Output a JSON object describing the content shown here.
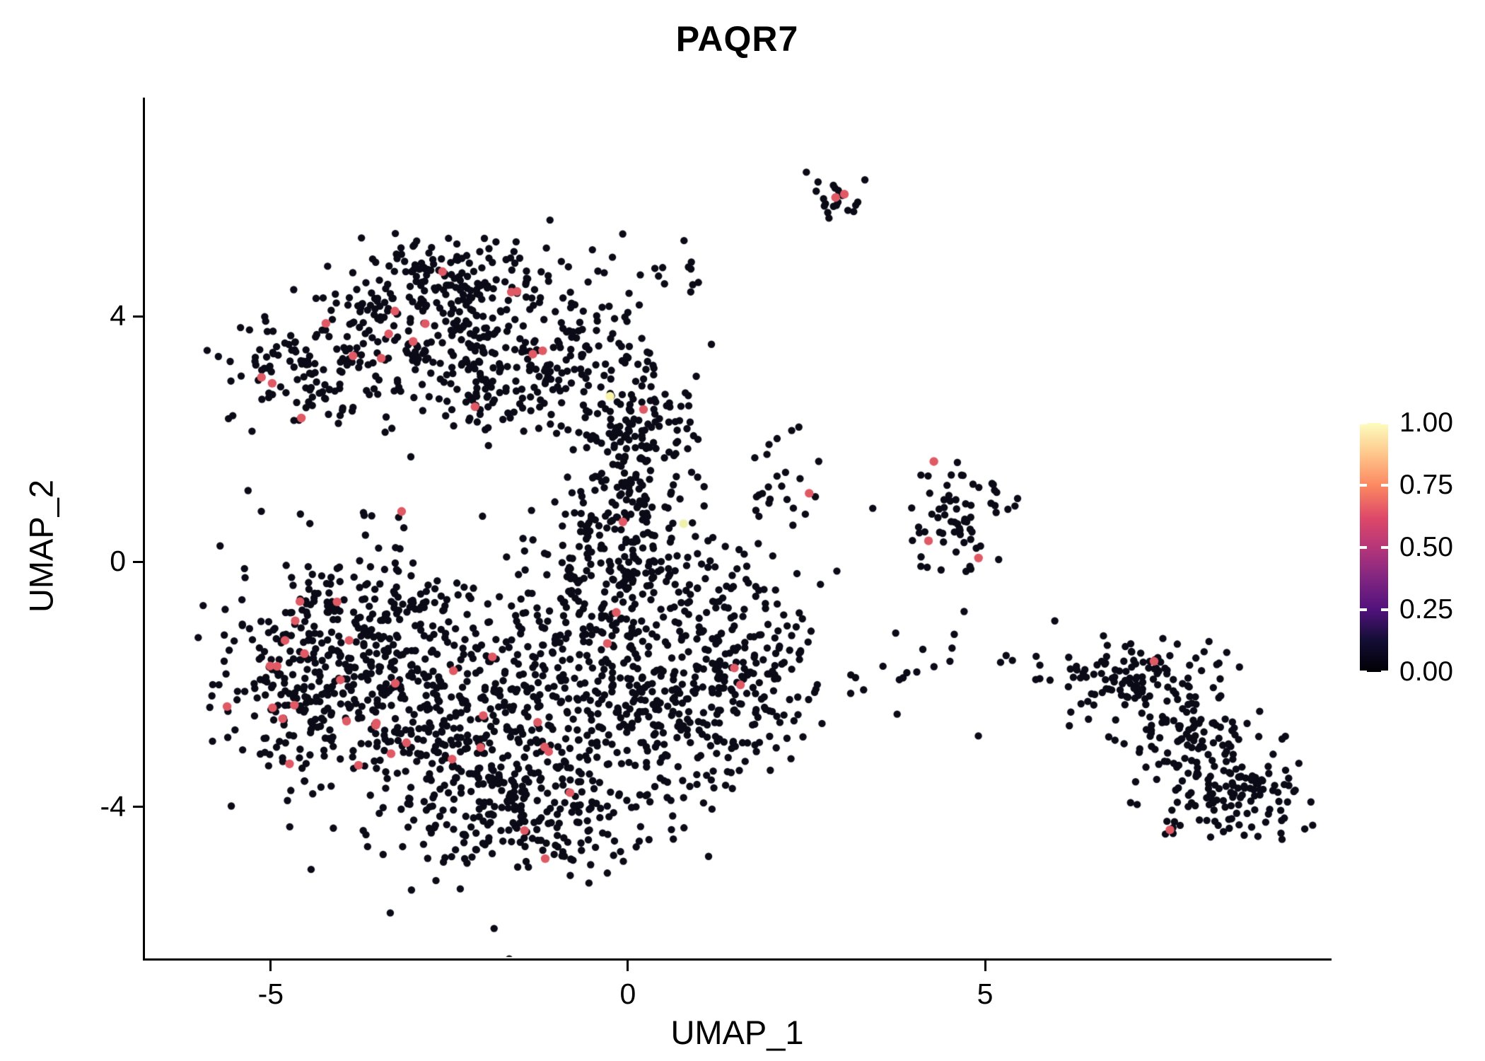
{
  "chart_data": {
    "type": "scatter",
    "title": "PAQR7",
    "xlabel": "UMAP_1",
    "ylabel": "UMAP_2",
    "xlim": [
      -6.76,
      9.82
    ],
    "ylim": [
      -6.47,
      7.57
    ],
    "grid": false,
    "legend_position": "right",
    "x_ticks": [
      {
        "value": -5,
        "label": "-5"
      },
      {
        "value": 0,
        "label": "0"
      },
      {
        "value": 5,
        "label": "5"
      }
    ],
    "y_ticks": [
      {
        "value": 4,
        "label": "4"
      },
      {
        "value": 0,
        "label": "0"
      },
      {
        "value": -4,
        "label": "-4"
      }
    ],
    "colorbar": {
      "colormap_name": "magma",
      "stops": [
        {
          "v": 0.0,
          "c": "#000004"
        },
        {
          "v": 0.13,
          "c": "#140E36"
        },
        {
          "v": 0.25,
          "c": "#51127C"
        },
        {
          "v": 0.38,
          "c": "#822681"
        },
        {
          "v": 0.5,
          "c": "#B63679"
        },
        {
          "v": 0.62,
          "c": "#DE4968"
        },
        {
          "v": 0.75,
          "c": "#FC8961"
        },
        {
          "v": 0.88,
          "c": "#FEC98D"
        },
        {
          "v": 1.0,
          "c": "#FCFDBF"
        }
      ],
      "labels": [
        {
          "value": 1.0,
          "text": "1.00"
        },
        {
          "value": 0.75,
          "text": "0.75"
        },
        {
          "value": 0.5,
          "text": "0.50"
        },
        {
          "value": 0.25,
          "text": "0.25"
        },
        {
          "value": 0.0,
          "text": "0.00"
        }
      ]
    },
    "points": {
      "base_color": "#0B0B17",
      "highlight_color": "#E05A65",
      "base_radius_px": 5.2,
      "highlight_radius_px": 6.2,
      "seed": 1337,
      "clusters": [
        {
          "name": "topleft-core",
          "cx": -2.7,
          "cy": 4.0,
          "sx": 0.85,
          "sy": 0.55,
          "n": 220,
          "highlights": 8
        },
        {
          "name": "topleft-north",
          "cx": -2.3,
          "cy": 4.7,
          "sx": 0.5,
          "sy": 0.3,
          "n": 70,
          "highlights": 1
        },
        {
          "name": "topleft-west",
          "cx": -4.35,
          "cy": 3.05,
          "sx": 0.65,
          "sy": 0.45,
          "n": 140,
          "highlights": 4
        },
        {
          "name": "topleft-south",
          "cx": -1.75,
          "cy": 2.9,
          "sx": 0.6,
          "sy": 0.5,
          "n": 120,
          "highlights": 2
        },
        {
          "name": "topleft-east-arm",
          "cx": -0.75,
          "cy": 3.5,
          "sx": 0.5,
          "sy": 0.65,
          "n": 80,
          "highlights": 1
        },
        {
          "name": "central-column-upper",
          "cx": 0.1,
          "cy": 2.0,
          "sx": 0.45,
          "sy": 0.75,
          "n": 170,
          "highlights": 1
        },
        {
          "name": "central-column-lower",
          "cx": -0.15,
          "cy": 0.55,
          "sx": 0.5,
          "sy": 0.5,
          "n": 90,
          "highlights": 1
        },
        {
          "name": "main-west",
          "cx": -3.6,
          "cy": -1.5,
          "sx": 0.95,
          "sy": 0.95,
          "n": 400,
          "highlights": 16
        },
        {
          "name": "main-farwest",
          "cx": -4.75,
          "cy": -2.1,
          "sx": 0.5,
          "sy": 0.75,
          "n": 120,
          "highlights": 6
        },
        {
          "name": "main-south",
          "cx": -2.2,
          "cy": -3.1,
          "sx": 0.95,
          "sy": 0.85,
          "n": 320,
          "highlights": 8
        },
        {
          "name": "main-center",
          "cx": -0.8,
          "cy": -1.6,
          "sx": 0.9,
          "sy": 0.95,
          "n": 270,
          "highlights": 2
        },
        {
          "name": "main-southeast",
          "cx": 0.8,
          "cy": -2.3,
          "sx": 0.85,
          "sy": 0.8,
          "n": 230,
          "highlights": 2
        },
        {
          "name": "main-bottom",
          "cx": -1.2,
          "cy": -4.2,
          "sx": 0.8,
          "sy": 0.45,
          "n": 150,
          "highlights": 2
        },
        {
          "name": "main-north",
          "cx": 0.3,
          "cy": -0.3,
          "sx": 0.65,
          "sy": 0.5,
          "n": 100,
          "highlights": 1
        },
        {
          "name": "main-east-lobe",
          "cx": 1.8,
          "cy": -1.6,
          "sx": 0.55,
          "sy": 0.8,
          "n": 120,
          "highlights": 0
        },
        {
          "name": "top-small",
          "cx": 2.85,
          "cy": 5.9,
          "sx": 0.2,
          "sy": 0.25,
          "n": 22,
          "highlights": 2
        },
        {
          "name": "bridge-upper",
          "cx": 0.5,
          "cy": 4.6,
          "sx": 0.35,
          "sy": 0.35,
          "n": 14,
          "highlights": 0
        },
        {
          "name": "mid-small",
          "cx": 2.15,
          "cy": 1.3,
          "sx": 0.3,
          "sy": 0.4,
          "n": 26,
          "highlights": 1
        },
        {
          "name": "right-upper",
          "cx": 4.6,
          "cy": 0.7,
          "sx": 0.45,
          "sy": 0.5,
          "n": 70,
          "highlights": 3
        },
        {
          "name": "trail",
          "cx": 4.2,
          "cy": -1.6,
          "sx": 0.9,
          "sy": 0.3,
          "n": 20,
          "highlights": 0
        },
        {
          "name": "far-right-upper",
          "cx": 7.1,
          "cy": -1.95,
          "sx": 0.6,
          "sy": 0.4,
          "n": 130,
          "highlights": 1
        },
        {
          "name": "far-right-mid",
          "cx": 7.8,
          "cy": -2.8,
          "sx": 0.4,
          "sy": 0.4,
          "n": 60,
          "highlights": 0
        },
        {
          "name": "far-right-lower",
          "cx": 8.4,
          "cy": -3.7,
          "sx": 0.55,
          "sy": 0.45,
          "n": 150,
          "highlights": 1
        }
      ],
      "special_points": [
        {
          "x": -0.25,
          "y": 2.7,
          "color": "#F8F4A8"
        },
        {
          "x": 0.78,
          "y": 0.62,
          "color": "#EFF2AC"
        }
      ]
    }
  }
}
